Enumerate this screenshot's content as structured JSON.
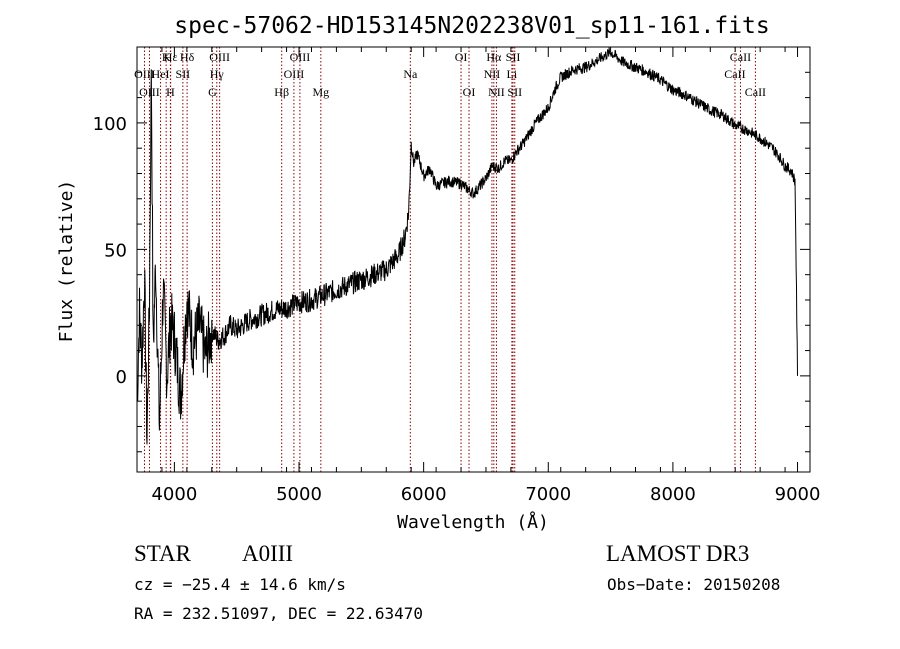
{
  "chart_data": {
    "type": "line",
    "title": "spec-57062-HD153145N202238V01_sp11-161.fits",
    "xlabel": "Wavelength (Å)",
    "ylabel": "Flux (relative)",
    "xlim": [
      3700,
      9100
    ],
    "ylim": [
      -38,
      130
    ],
    "x_ticks": [
      4000,
      5000,
      6000,
      7000,
      8000,
      9000
    ],
    "y_ticks": [
      0,
      50,
      100
    ],
    "series": [
      {
        "name": "flux",
        "x": [
          3700,
          3720,
          3740,
          3760,
          3780,
          3800,
          3815,
          3830,
          3850,
          3880,
          3910,
          3940,
          3970,
          4000,
          4050,
          4100,
          4150,
          4200,
          4250,
          4300,
          4350,
          4400,
          4450,
          4500,
          4600,
          4700,
          4800,
          4900,
          5000,
          5100,
          5200,
          5300,
          5400,
          5500,
          5600,
          5700,
          5750,
          5800,
          5850,
          5880,
          5900,
          5920,
          5950,
          6000,
          6050,
          6100,
          6200,
          6300,
          6400,
          6500,
          6550,
          6600,
          6650,
          6700,
          6750,
          6800,
          6850,
          6900,
          6950,
          7000,
          7050,
          7100,
          7200,
          7300,
          7400,
          7500,
          7600,
          7700,
          7800,
          7900,
          8000,
          8100,
          8200,
          8300,
          8400,
          8500,
          8600,
          8700,
          8800,
          8850,
          8900,
          8950,
          8980,
          9000
        ],
        "y": [
          -10,
          25,
          5,
          40,
          -25,
          30,
          125,
          10,
          45,
          -20,
          35,
          0,
          22,
          15,
          -8,
          30,
          12,
          20,
          8,
          18,
          14,
          16,
          20,
          18,
          22,
          24,
          26,
          27,
          29,
          30,
          32,
          34,
          36,
          38,
          40,
          42,
          45,
          48,
          55,
          65,
          92,
          84,
          88,
          79,
          82,
          75,
          77,
          76,
          72,
          78,
          83,
          82,
          85,
          85,
          89,
          92,
          96,
          100,
          103,
          106,
          113,
          118,
          121,
          122,
          125,
          128,
          124,
          122,
          120,
          117,
          113,
          111,
          108,
          105,
          103,
          99,
          97,
          94,
          90,
          87,
          83,
          81,
          77,
          0
        ]
      }
    ],
    "line_markers": [
      {
        "name": "Hα",
        "wavelength": 6563,
        "row": 0
      },
      {
        "name": "Hβ",
        "wavelength": 4861,
        "row": 2
      },
      {
        "name": "Hγ",
        "wavelength": 4340,
        "row": 1
      },
      {
        "name": "Hδ",
        "wavelength": 4102,
        "row": 0
      },
      {
        "name": "Hε",
        "wavelength": 3970,
        "row": 0
      },
      {
        "name": "H",
        "wavelength": 3968,
        "row": 2
      },
      {
        "name": "K",
        "wavelength": 3934,
        "row": 0
      },
      {
        "name": "HeI",
        "wavelength": 3889,
        "row": 1
      },
      {
        "name": "SII",
        "wavelength": 4068,
        "row": 1
      },
      {
        "name": "OIII",
        "wavelength": 3760,
        "row": 1
      },
      {
        "name": "OIII",
        "wavelength": 3800,
        "row": 2
      },
      {
        "name": "G",
        "wavelength": 4305,
        "row": 2
      },
      {
        "name": "OIII",
        "wavelength": 4363,
        "row": 0
      },
      {
        "name": "OIII",
        "wavelength": 4959,
        "row": 1
      },
      {
        "name": "OIII",
        "wavelength": 5007,
        "row": 0
      },
      {
        "name": "Mg",
        "wavelength": 5175,
        "row": 2
      },
      {
        "name": "Na",
        "wavelength": 5893,
        "row": 1
      },
      {
        "name": "OI",
        "wavelength": 6300,
        "row": 0
      },
      {
        "name": "OI",
        "wavelength": 6364,
        "row": 2
      },
      {
        "name": "NII",
        "wavelength": 6548,
        "row": 1
      },
      {
        "name": "NII",
        "wavelength": 6584,
        "row": 2
      },
      {
        "name": "Li",
        "wavelength": 6708,
        "row": 1
      },
      {
        "name": "SII",
        "wavelength": 6717,
        "row": 0
      },
      {
        "name": "SII",
        "wavelength": 6731,
        "row": 2
      },
      {
        "name": "CaII",
        "wavelength": 8498,
        "row": 1
      },
      {
        "name": "CaII",
        "wavelength": 8542,
        "row": 0
      },
      {
        "name": "CaII",
        "wavelength": 8662,
        "row": 2
      }
    ]
  },
  "info": {
    "object_class": "STAR",
    "subclass": "A0III",
    "survey": "LAMOST DR3",
    "cz": "cz = −25.4 ± 14.6 km/s",
    "obs_date": "Obs−Date: 20150208",
    "coords": "RA = 232.51097, DEC =  22.63470"
  },
  "colors": {
    "spectrum": "#000000",
    "marker_line": "#8b0000",
    "axis": "#000000"
  }
}
